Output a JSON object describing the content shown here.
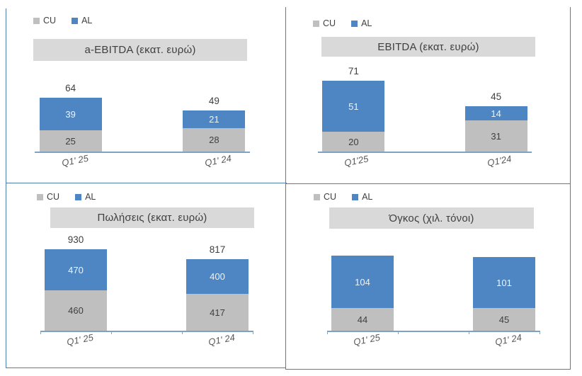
{
  "colors": {
    "cu": "#BFBFBF",
    "al": "#4E86C4",
    "title_band": "#D9D9D9",
    "panel_border": "#4E7FAC",
    "axis_line": "#7FA2C2",
    "value_on_al": "#EDF3FA",
    "value_on_cu": "#404040",
    "total_label": "#404040",
    "x_label": "#595959"
  },
  "chart_data": [
    {
      "type": "bar",
      "stacked": true,
      "title": "a-EBITDA (εκατ. ευρώ)",
      "categories": [
        "Q1' 25",
        "Q1' 24"
      ],
      "series": [
        {
          "name": "CU",
          "values": [
            25,
            28
          ]
        },
        {
          "name": "AL",
          "values": [
            39,
            21
          ]
        }
      ],
      "totals": [
        64,
        49
      ],
      "legend_position": "top-left",
      "grid": false
    },
    {
      "type": "bar",
      "stacked": true,
      "title": "EBITDA (εκατ. ευρώ)",
      "categories": [
        "Q1'25",
        "Q1'24"
      ],
      "series": [
        {
          "name": "CU",
          "values": [
            20,
            31
          ]
        },
        {
          "name": "AL",
          "values": [
            51,
            14
          ]
        }
      ],
      "totals": [
        71,
        45
      ],
      "legend_position": "top-left",
      "grid": false
    },
    {
      "type": "bar",
      "stacked": true,
      "title": "Πωλήσεις (εκατ. ευρώ)",
      "categories": [
        "Q1' 25",
        "Q1' 24"
      ],
      "series": [
        {
          "name": "CU",
          "values": [
            460,
            417
          ]
        },
        {
          "name": "AL",
          "values": [
            470,
            400
          ]
        }
      ],
      "totals": [
        930,
        817
      ],
      "legend_position": "top-left",
      "grid": false
    },
    {
      "type": "bar",
      "stacked": true,
      "title": "Όγκος (χιλ. τόνοι)",
      "categories": [
        "Q1' 25",
        "Q1' 24"
      ],
      "series": [
        {
          "name": "CU",
          "values": [
            44,
            45
          ]
        },
        {
          "name": "AL",
          "values": [
            104,
            101
          ]
        }
      ],
      "totals": null,
      "legend_position": "top-left",
      "grid": false
    }
  ]
}
